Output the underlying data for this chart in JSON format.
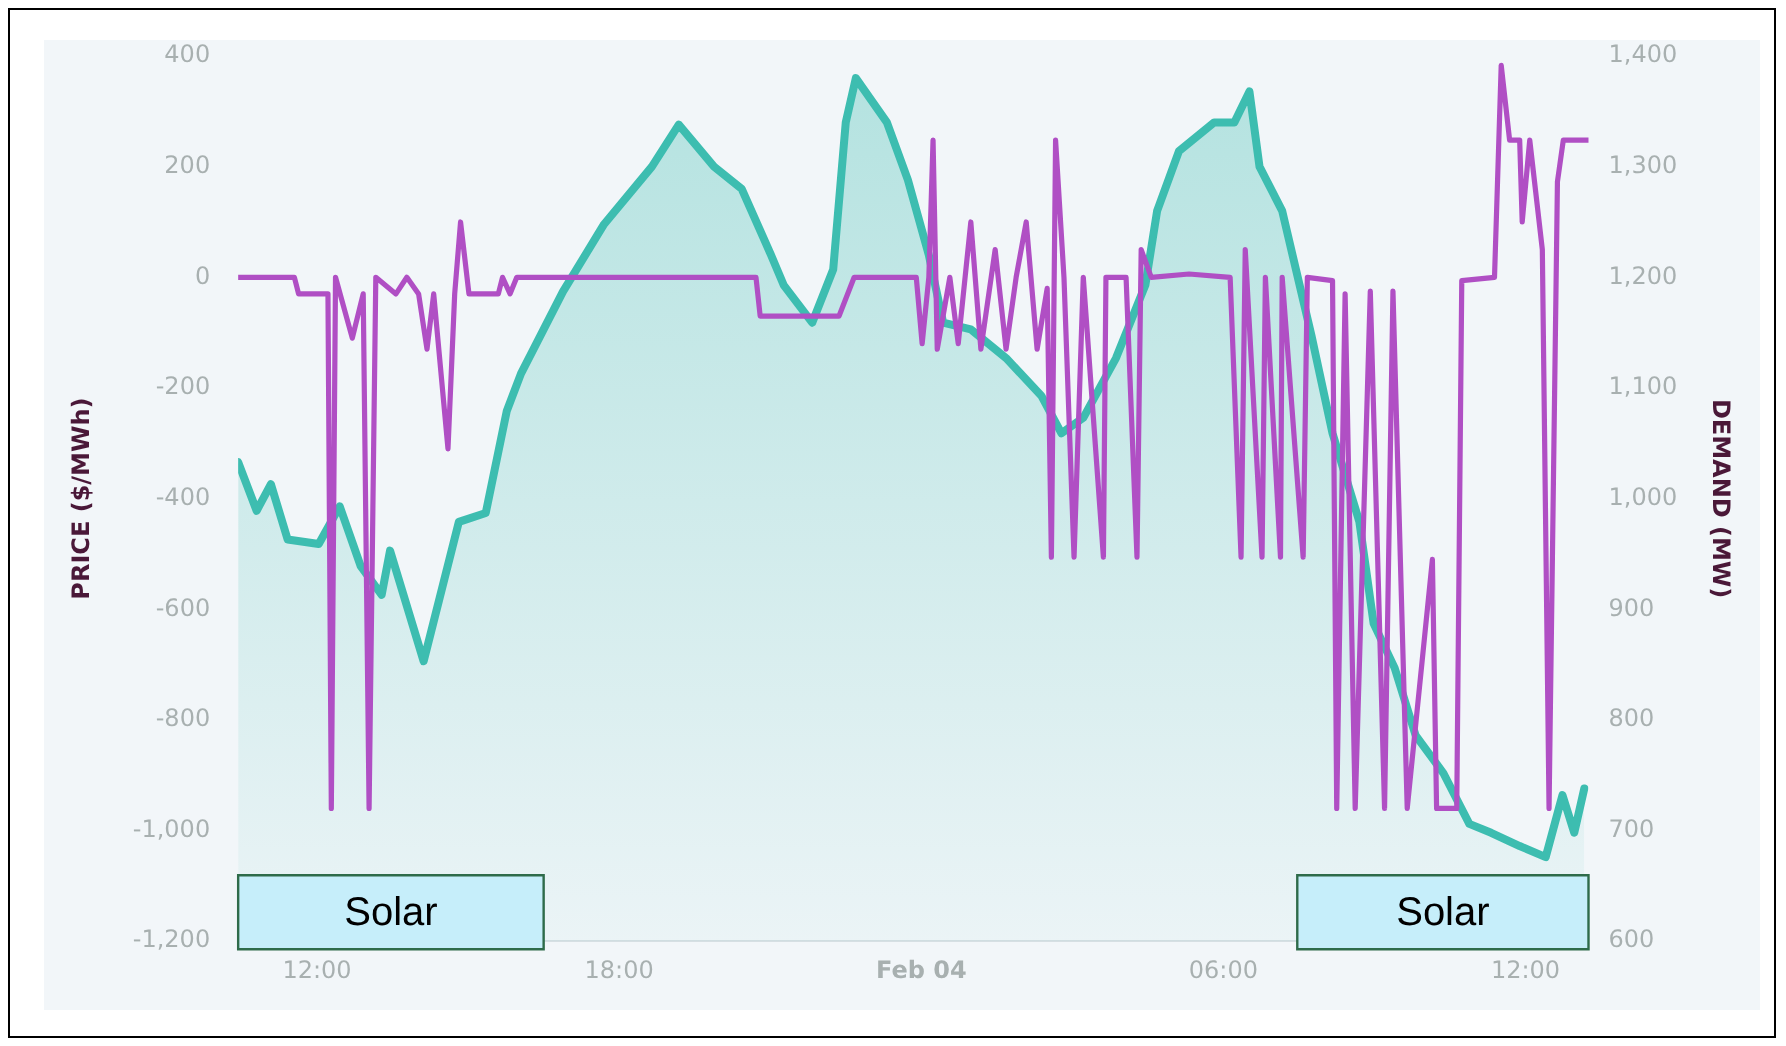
{
  "chart_data": {
    "type": "line",
    "ylabel": "PRICE ($/MWh)",
    "y2label": "DEMAND (MW)",
    "xlim": [
      "--02-03T10:26",
      "--02-04T13:15"
    ],
    "xticks": [
      {
        "value": "--02-03T12:00",
        "label": "12:00"
      },
      {
        "value": "--02-03T18:00",
        "label": "18:00"
      },
      {
        "value": "--02-04T00:00",
        "label": "Feb 04"
      },
      {
        "value": "--02-04T06:00",
        "label": "06:00"
      },
      {
        "value": "--02-04T12:00",
        "label": "12:00"
      }
    ],
    "ylim": [
      -1200,
      400
    ],
    "yticks": [
      400,
      200,
      0,
      -200,
      -400,
      -600,
      -800,
      {
        "value": -1000,
        "label": "-1,000"
      },
      {
        "value": -1200,
        "label": "-1,200"
      }
    ],
    "y2lim": [
      600,
      1400
    ],
    "y2ticks": [
      {
        "value": 1400,
        "label": "1,400"
      },
      {
        "value": 1300,
        "label": "1,300"
      },
      {
        "value": 1200,
        "label": "1,200"
      },
      {
        "value": 1100,
        "label": "1,100"
      },
      {
        "value": 1000,
        "label": "1,000"
      },
      900,
      800,
      700,
      600
    ],
    "grid": false,
    "legend": false,
    "bands": [
      {
        "axis": "x",
        "from": "--02-03T10:26",
        "to": "--02-03T16:30",
        "label": "Solar",
        "color": "#c6eefa"
      },
      {
        "axis": "x",
        "from": "--02-04T07:28",
        "to": "--02-04T13:15",
        "label": "Solar",
        "color": "#c6eefa"
      }
    ],
    "series": [
      {
        "type": "area",
        "axis": "y2",
        "color": "#3dbdb0",
        "x": [
          "--02-03T10:26",
          "--02-03T10:48",
          "--02-03T11:05",
          "--02-03T11:25",
          "--02-03T12:02",
          "--02-03T12:27",
          "--02-03T12:52",
          "--02-03T13:17",
          "--02-03T13:27",
          "--02-03T14:07",
          "--02-03T14:49",
          "--02-03T15:21",
          "--02-03T15:46",
          "--02-03T16:03",
          "--02-03T16:53",
          "--02-03T17:42",
          "--02-03T18:39",
          "--02-03T19:11",
          "--02-03T19:53",
          "--02-03T20:26",
          "--02-03T21:01",
          "--02-03T21:16",
          "--02-03T21:50",
          "--02-03T22:15",
          "--02-03T22:30",
          "--02-03T22:42",
          "--02-03T23:19",
          "--02-03T23:44",
          "--02-04T00:09",
          "--02-04T00:26",
          "--02-04T00:59",
          "--02-04T01:41",
          "--02-04T02:23",
          "--02-04T02:47",
          "--02-04T03:13",
          "--02-04T03:52",
          "--02-04T04:27",
          "--02-04T04:41",
          "--02-04T05:07",
          "--02-04T05:49",
          "--02-04T06:13",
          "--02-04T06:31",
          "--02-04T06:43",
          "--02-04T07:10",
          "--02-04T07:45",
          "--02-04T08:10",
          "--02-04T08:42",
          "--02-04T08:59",
          "--02-04T09:24",
          "--02-04T09:49",
          "--02-04T10:22",
          "--02-04T10:53",
          "--02-04T11:19",
          "--02-04T11:53",
          "--02-04T12:24",
          "--02-04T12:44",
          "--02-04T12:58",
          "--02-04T13:10"
        ],
        "values": [
          1033,
          989,
          1013,
          963,
          959,
          993,
          939,
          913,
          953,
          853,
          979,
          987,
          1079,
          1113,
          1187,
          1248,
          1300,
          1338,
          1300,
          1280,
          1220,
          1193,
          1159,
          1207,
          1340,
          1380,
          1340,
          1288,
          1220,
          1159,
          1153,
          1127,
          1093,
          1059,
          1073,
          1127,
          1193,
          1260,
          1314,
          1340,
          1340,
          1368,
          1300,
          1260,
          1147,
          1059,
          979,
          887,
          847,
          786,
          752,
          706,
          698,
          686,
          676,
          732,
          698,
          738
        ]
      },
      {
        "color": "#b04fc4",
        "x": [
          "--02-03T10:26",
          "--02-03T11:33",
          "--02-03T11:38",
          "--02-03T12:13",
          "--02-03T12:17",
          "--02-03T12:22",
          "--02-03T12:42",
          "--02-03T12:55",
          "--02-03T13:02",
          "--02-03T13:10",
          "--02-03T13:34",
          "--02-03T13:47",
          "--02-03T14:01",
          "--02-03T14:11",
          "--02-03T14:19",
          "--02-03T14:36",
          "--02-03T14:44",
          "--02-03T14:51",
          "--02-03T15:01",
          "--02-03T15:36",
          "--02-03T15:41",
          "--02-03T15:50",
          "--02-03T15:58",
          "--02-03T20:43",
          "--02-03T20:48",
          "--02-03T22:22",
          "--02-03T22:40",
          "--02-03T23:54",
          "--02-04T00:01",
          "--02-04T00:09",
          "--02-04T00:14",
          "--02-04T00:19",
          "--02-04T00:34",
          "--02-04T00:44",
          "--02-04T00:59",
          "--02-04T01:11",
          "--02-04T01:28",
          "--02-04T01:41",
          "--02-04T01:53",
          "--02-04T02:05",
          "--02-04T02:18",
          "--02-04T02:30",
          "--02-04T02:35",
          "--02-04T02:40",
          "--02-04T02:50",
          "--02-04T03:02",
          "--02-04T03:13",
          "--02-04T03:37",
          "--02-04T03:40",
          "--02-04T04:04",
          "--02-04T04:17",
          "--02-04T04:22",
          "--02-04T04:34",
          "--02-04T05:19",
          "--02-04T06:08",
          "--02-04T06:21",
          "--02-04T06:26",
          "--02-04T06:46",
          "--02-04T06:50",
          "--02-04T07:08",
          "--02-04T07:10",
          "--02-04T07:35",
          "--02-04T07:40",
          "--02-04T08:10",
          "--02-04T08:15",
          "--02-04T08:25",
          "--02-04T08:37",
          "--02-04T08:55",
          "--02-04T09:12",
          "--02-04T09:22",
          "--02-04T09:39",
          "--02-04T10:09",
          "--02-04T10:14",
          "--02-04T10:38",
          "--02-04T10:44",
          "--02-04T11:23",
          "--02-04T11:31",
          "--02-04T11:41",
          "--02-04T11:53",
          "--02-04T11:56",
          "--02-04T12:05",
          "--02-04T12:20",
          "--02-04T12:28",
          "--02-04T12:38",
          "--02-04T12:45",
          "--02-04T13:15"
        ],
        "values": [
          0,
          0,
          -30,
          -30,
          -960,
          0,
          -110,
          -30,
          -960,
          0,
          -30,
          0,
          -30,
          -130,
          -30,
          -310,
          -30,
          100,
          -30,
          -30,
          0,
          -30,
          0,
          0,
          -70,
          -70,
          0,
          0,
          -120,
          0,
          248,
          -130,
          0,
          -120,
          100,
          -130,
          50,
          -130,
          0,
          100,
          -130,
          -20,
          -506,
          248,
          0,
          -506,
          0,
          -506,
          0,
          0,
          -506,
          50,
          0,
          6,
          0,
          -506,
          50,
          -506,
          0,
          -506,
          0,
          -506,
          0,
          -6,
          -960,
          -30,
          -960,
          -25,
          -960,
          -25,
          -960,
          -510,
          -960,
          -960,
          -6,
          0,
          383,
          248,
          248,
          100,
          248,
          50,
          -960,
          173,
          248,
          248
        ]
      }
    ]
  }
}
